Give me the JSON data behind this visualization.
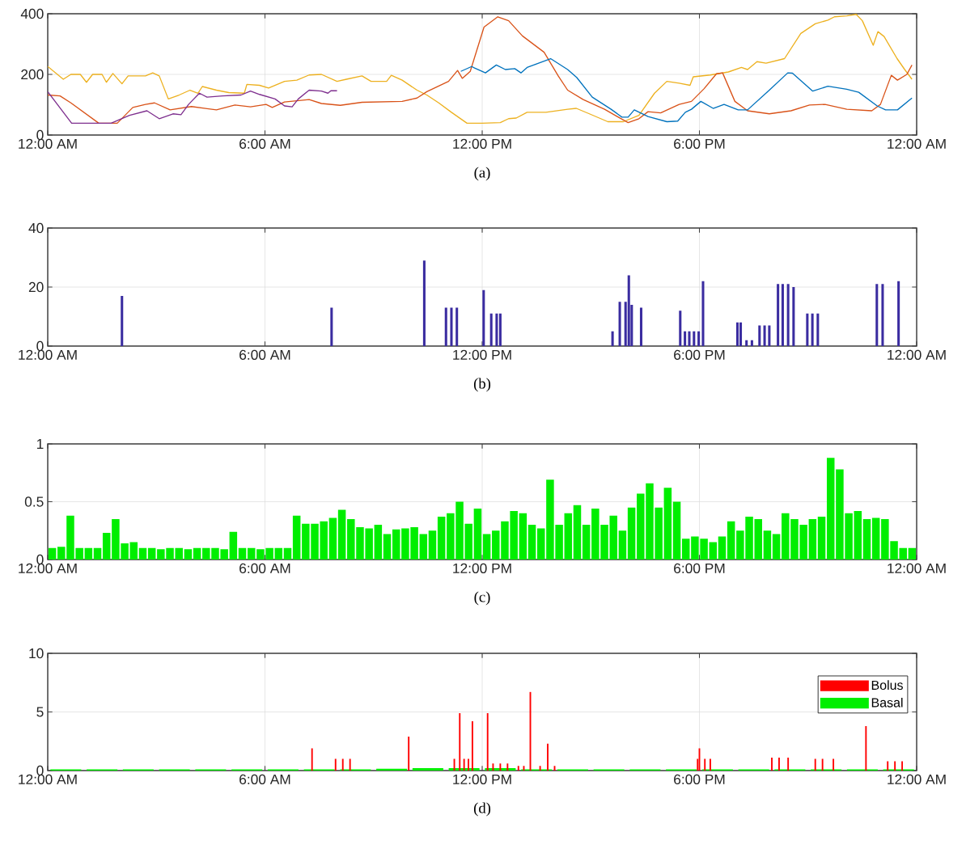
{
  "chart_data": [
    {
      "type": "line",
      "xlim": [
        0,
        24
      ],
      "xticks": [
        {
          "value": 0,
          "label": "12:00 AM"
        },
        {
          "value": 6,
          "label": "6:00 AM"
        },
        {
          "value": 12,
          "label": "12:00 PM"
        },
        {
          "value": 18,
          "label": "6:00 PM"
        },
        {
          "value": 24,
          "label": "12:00 AM"
        }
      ],
      "ylim": [
        0,
        400
      ],
      "yticks": [
        0,
        200,
        400
      ],
      "grid": true,
      "annotations": [
        "(a)"
      ],
      "series": [
        {
          "color": "#edb120",
          "x": [
            0,
            0.43,
            0.64,
            0.9,
            1.07,
            1.24,
            1.5,
            1.62,
            1.8,
            2.05,
            2.22,
            2.7,
            2.9,
            3.08,
            3.33,
            3.63,
            3.93,
            4.15,
            4.27,
            4.66,
            5.0,
            5.43,
            5.5,
            5.85,
            6.1,
            6.54,
            6.88,
            7.22,
            7.56,
            7.99,
            8.25,
            8.68,
            8.93,
            9.36,
            9.49,
            9.79,
            10.2,
            10.47,
            10.8,
            11.15,
            11.58,
            12.0,
            12.5,
            12.73,
            12.94,
            13.24,
            13.76,
            14.36,
            14.6,
            14.96,
            15.47,
            15.9,
            16.33,
            16.76,
            17.1,
            17.44,
            17.74,
            17.83,
            18.3,
            18.8,
            19.16,
            19.33,
            19.59,
            19.84,
            20.35,
            20.8,
            21.2,
            21.55,
            21.73,
            22.07,
            22.33,
            22.5,
            22.8,
            22.93,
            23.1,
            23.46,
            23.67,
            23.87
          ],
          "values": [
            226,
            184,
            200,
            200,
            174,
            200,
            200,
            174,
            203,
            169,
            195,
            195,
            205,
            195,
            119,
            132,
            148,
            138,
            160,
            148,
            140,
            138,
            167,
            164,
            155,
            177,
            181,
            198,
            200,
            177,
            184,
            195,
            177,
            177,
            197,
            181,
            148,
            132,
            106,
            75,
            39,
            39,
            41,
            54,
            56,
            75,
            75,
            85,
            88,
            70,
            44,
            44,
            65,
            138,
            177,
            171,
            164,
            192,
            198,
            208,
            223,
            216,
            242,
            237,
            252,
            335,
            367,
            379,
            390,
            393,
            398,
            377,
            296,
            341,
            325,
            252,
            216,
            184
          ]
        },
        {
          "color": "#d95319",
          "x": [
            0,
            0.34,
            0.64,
            1.41,
            1.92,
            2.35,
            2.7,
            2.95,
            3.38,
            3.97,
            4.66,
            5.17,
            5.6,
            6.03,
            6.2,
            6.54,
            7.22,
            7.56,
            8.08,
            8.68,
            9.79,
            10.2,
            10.47,
            11.07,
            11.32,
            11.45,
            11.67,
            12.05,
            12.43,
            12.73,
            13.11,
            13.71,
            14.1,
            14.36,
            14.79,
            15.38,
            15.73,
            16.03,
            16.33,
            16.58,
            16.93,
            17.44,
            17.78,
            18.13,
            18.47,
            18.64,
            18.98,
            19.33,
            19.93,
            20.53,
            21.04,
            21.47,
            22.07,
            22.76,
            23.0,
            23.3,
            23.47,
            23.73,
            23.87
          ],
          "values": [
            132,
            129,
            106,
            39,
            39,
            91,
            101,
            106,
            83,
            94,
            83,
            99,
            93,
            101,
            91,
            109,
            117,
            104,
            98,
            108,
            111,
            122,
            143,
            177,
            213,
            187,
            210,
            356,
            390,
            377,
            327,
            273,
            195,
            148,
            117,
            85,
            61,
            41,
            54,
            77,
            73,
            101,
            111,
            153,
            202,
            205,
            111,
            80,
            70,
            80,
            99,
            101,
            85,
            80,
            101,
            197,
            181,
            200,
            231
          ]
        },
        {
          "color": "#0072bd",
          "x": [
            11.41,
            11.71,
            11.79,
            12.09,
            12.39,
            12.64,
            12.9,
            13.07,
            13.24,
            13.89,
            14.36,
            14.61,
            15.04,
            15.56,
            15.86,
            16.03,
            16.2,
            16.58,
            17.1,
            17.4,
            17.61,
            17.78,
            18.04,
            18.38,
            18.68,
            19.07,
            19.33,
            19.93,
            20.44,
            20.57,
            21.13,
            21.55,
            22.07,
            22.4,
            22.91,
            23.14,
            23.47,
            23.87
          ],
          "values": [
            210,
            226,
            221,
            205,
            231,
            216,
            219,
            205,
            223,
            252,
            216,
            190,
            125,
            85,
            59,
            59,
            83,
            61,
            44,
            46,
            75,
            85,
            111,
            88,
            101,
            83,
            83,
            148,
            205,
            204,
            145,
            161,
            151,
            141,
            96,
            83,
            83,
            122
          ]
        },
        {
          "color": "#7e2f8e",
          "x": [
            0,
            0.66,
            1.75,
            2.26,
            2.74,
            3.08,
            3.46,
            3.68,
            3.89,
            4.19,
            4.4,
            4.83,
            5.34,
            5.6,
            5.85,
            6.28,
            6.54,
            6.75,
            6.92,
            7.22,
            7.56,
            7.74,
            7.82,
            7.99
          ],
          "values": [
            143,
            39,
            39,
            65,
            80,
            54,
            70,
            67,
            101,
            138,
            125,
            129,
            132,
            145,
            134,
            119,
            96,
            93,
            119,
            148,
            145,
            138,
            146,
            146
          ]
        }
      ]
    },
    {
      "type": "bar",
      "xlim": [
        0,
        24
      ],
      "xticks": [
        {
          "value": 0,
          "label": "12:00 AM"
        },
        {
          "value": 6,
          "label": "6:00 AM"
        },
        {
          "value": 12,
          "label": "12:00 PM"
        },
        {
          "value": 18,
          "label": "6:00 PM"
        },
        {
          "value": 24,
          "label": "12:00 AM"
        }
      ],
      "ylim": [
        0,
        40
      ],
      "yticks": [
        0,
        20,
        40
      ],
      "grid": true,
      "annotations": [
        "(b)"
      ],
      "color": "#3a2ca0",
      "x": [
        2.05,
        7.84,
        10.4,
        11.0,
        11.15,
        11.3,
        12.04,
        12.25,
        12.4,
        12.5,
        15.6,
        15.8,
        15.96,
        16.05,
        16.13,
        16.39,
        17.47,
        17.6,
        17.72,
        17.85,
        17.98,
        18.1,
        19.05,
        19.14,
        19.3,
        19.45,
        19.66,
        19.8,
        19.93,
        20.17,
        20.3,
        20.45,
        20.6,
        20.98,
        21.12,
        21.27,
        22.9,
        23.06,
        23.5
      ],
      "values": [
        17,
        13,
        29,
        13,
        13,
        13,
        19,
        11,
        11,
        11,
        5,
        15,
        15,
        24,
        14,
        13,
        12,
        5,
        5,
        5,
        5,
        22,
        8,
        8,
        2,
        2,
        7,
        7,
        7,
        21,
        21,
        21,
        20,
        11,
        11,
        11,
        21,
        21,
        22
      ]
    },
    {
      "type": "bar",
      "xlim": [
        0,
        24
      ],
      "xticks": [
        {
          "value": 0,
          "label": "12:00 AM"
        },
        {
          "value": 6,
          "label": "6:00 AM"
        },
        {
          "value": 12,
          "label": "12:00 PM"
        },
        {
          "value": 18,
          "label": "6:00 PM"
        },
        {
          "value": 24,
          "label": "12:00 AM"
        }
      ],
      "ylim": [
        0,
        1
      ],
      "yticks": [
        0,
        0.5,
        1
      ],
      "grid": true,
      "annotations": [
        "(c)"
      ],
      "color": "#00ee00",
      "x": [
        0.125,
        0.375,
        0.625,
        0.875,
        1.125,
        1.375,
        1.625,
        1.875,
        2.125,
        2.375,
        2.625,
        2.875,
        3.125,
        3.375,
        3.625,
        3.875,
        4.125,
        4.375,
        4.625,
        4.875,
        5.125,
        5.375,
        5.625,
        5.875,
        6.125,
        6.375,
        6.625,
        6.875,
        7.125,
        7.375,
        7.625,
        7.875,
        8.125,
        8.375,
        8.625,
        8.875,
        9.125,
        9.375,
        9.625,
        9.875,
        10.125,
        10.375,
        10.625,
        10.875,
        11.125,
        11.375,
        11.625,
        11.875,
        12.125,
        12.375,
        12.625,
        12.875,
        13.125,
        13.375,
        13.625,
        13.875,
        14.125,
        14.375,
        14.625,
        14.875,
        15.125,
        15.375,
        15.625,
        15.875,
        16.125,
        16.375,
        16.625,
        16.875,
        17.125,
        17.375,
        17.625,
        17.875,
        18.125,
        18.375,
        18.625,
        18.875,
        19.125,
        19.375,
        19.625,
        19.875,
        20.125,
        20.375,
        20.625,
        20.875,
        21.125,
        21.375,
        21.625,
        21.875,
        22.125,
        22.375,
        22.625,
        22.875,
        23.125,
        23.375,
        23.625,
        23.875
      ],
      "values": [
        0.1,
        0.11,
        0.38,
        0.1,
        0.1,
        0.1,
        0.23,
        0.35,
        0.14,
        0.15,
        0.1,
        0.1,
        0.09,
        0.1,
        0.1,
        0.09,
        0.1,
        0.1,
        0.1,
        0.09,
        0.24,
        0.1,
        0.1,
        0.09,
        0.1,
        0.1,
        0.1,
        0.38,
        0.31,
        0.31,
        0.33,
        0.36,
        0.43,
        0.35,
        0.28,
        0.27,
        0.3,
        0.22,
        0.26,
        0.27,
        0.28,
        0.22,
        0.25,
        0.37,
        0.4,
        0.5,
        0.31,
        0.44,
        0.22,
        0.25,
        0.33,
        0.42,
        0.4,
        0.3,
        0.27,
        0.69,
        0.3,
        0.4,
        0.47,
        0.3,
        0.44,
        0.3,
        0.38,
        0.25,
        0.45,
        0.57,
        0.66,
        0.45,
        0.62,
        0.5,
        0.18,
        0.2,
        0.18,
        0.15,
        0.2,
        0.33,
        0.25,
        0.37,
        0.35,
        0.25,
        0.22,
        0.4,
        0.35,
        0.3,
        0.35,
        0.37,
        0.88,
        0.78,
        0.4,
        0.42,
        0.35,
        0.36,
        0.35,
        0.16,
        0.1,
        0.1
      ]
    },
    {
      "type": "bar",
      "xlim": [
        0,
        24
      ],
      "xticks": [
        {
          "value": 0,
          "label": "12:00 AM"
        },
        {
          "value": 6,
          "label": "6:00 AM"
        },
        {
          "value": 12,
          "label": "12:00 PM"
        },
        {
          "value": 18,
          "label": "6:00 PM"
        },
        {
          "value": 24,
          "label": "12:00 AM"
        }
      ],
      "ylim": [
        0,
        10
      ],
      "yticks": [
        0,
        5,
        10
      ],
      "grid": true,
      "annotations": [
        "(d)"
      ],
      "legend": "top right",
      "series": [
        {
          "name": "Bolus",
          "color": "#ff0000",
          "x": [
            7.3,
            7.95,
            8.15,
            8.35,
            9.97,
            11.23,
            11.38,
            11.5,
            11.62,
            11.73,
            12.15,
            12.3,
            12.5,
            12.7,
            13.0,
            13.15,
            13.33,
            13.6,
            13.81,
            14.0,
            17.95,
            18.0,
            18.15,
            18.3,
            20.0,
            20.2,
            20.45,
            21.2,
            21.4,
            21.7,
            22.6,
            23.2,
            23.4,
            23.6
          ],
          "values": [
            1.9,
            1.0,
            1.0,
            1.0,
            2.9,
            1.0,
            4.9,
            1.0,
            1.0,
            4.2,
            4.9,
            0.6,
            0.6,
            0.6,
            0.4,
            0.4,
            6.7,
            0.4,
            2.3,
            0.4,
            1.0,
            1.9,
            1.0,
            1.0,
            1.1,
            1.1,
            1.1,
            1.0,
            1.0,
            1.0,
            3.8,
            0.8,
            0.8,
            0.8
          ]
        },
        {
          "name": "Basal",
          "color": "#00ee00",
          "x": [
            0.5,
            1.5,
            2.5,
            3.5,
            4.5,
            5.5,
            6.5,
            7.5,
            8.5,
            9.5,
            10.5,
            11.5,
            12.5,
            13.5,
            14.5,
            15.5,
            16.5,
            17.5,
            18.5,
            19.5,
            20.5,
            21.5,
            22.5,
            23.5
          ],
          "values": [
            0.1,
            0.1,
            0.1,
            0.1,
            0.1,
            0.1,
            0.1,
            0.1,
            0.1,
            0.15,
            0.2,
            0.2,
            0.2,
            0.1,
            0.1,
            0.1,
            0.1,
            0.1,
            0.1,
            0.1,
            0.1,
            0.1,
            0.1,
            0.1
          ]
        }
      ]
    }
  ]
}
